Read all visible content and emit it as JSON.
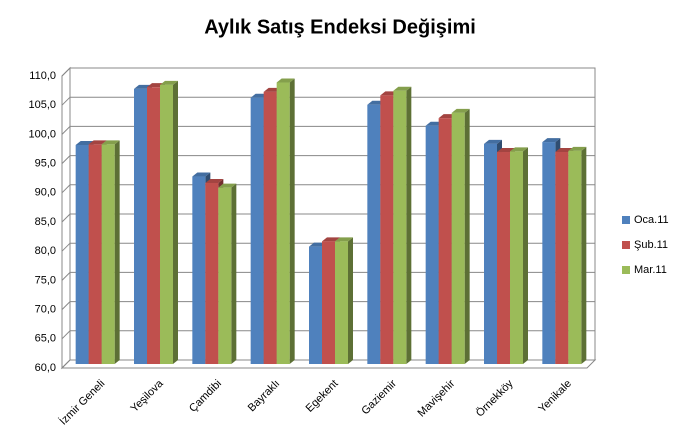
{
  "chart_data": {
    "type": "bar",
    "title": "Aylık Satış Endeksi Değişimi",
    "categories": [
      "İzmir Geneli",
      "Yeşilova",
      "Çamdibi",
      "Bayraklı",
      "Egekent",
      "Gaziemir",
      "Mavişehir",
      "Örnekköy",
      "Yenikale"
    ],
    "series": [
      {
        "name": "Oca.11",
        "color": "#4f81bd",
        "values": [
          97.5,
          107.1,
          92.1,
          105.6,
          80.1,
          104.4,
          100.8,
          97.7,
          98.0
        ]
      },
      {
        "name": "Şub.11",
        "color": "#c0504d",
        "values": [
          97.6,
          107.4,
          91.0,
          106.6,
          81.0,
          106.0,
          102.1,
          96.3,
          96.3
        ]
      },
      {
        "name": "Mar.11",
        "color": "#9bbb59",
        "values": [
          97.6,
          107.8,
          90.2,
          108.2,
          81.0,
          106.8,
          103.0,
          96.4,
          96.5
        ]
      }
    ],
    "ylim": [
      60,
      110
    ],
    "yticks": [
      {
        "value": 60,
        "label": "60,0"
      },
      {
        "value": 65,
        "label": "65,0"
      },
      {
        "value": 70,
        "label": "70,0"
      },
      {
        "value": 75,
        "label": "75,0"
      },
      {
        "value": 80,
        "label": "80,0"
      },
      {
        "value": 85,
        "label": "85,0"
      },
      {
        "value": 90,
        "label": "90,0"
      },
      {
        "value": 95,
        "label": "95,0"
      },
      {
        "value": 100,
        "label": "100,0"
      },
      {
        "value": 105,
        "label": "105,0"
      },
      {
        "value": 110,
        "label": "110,0"
      }
    ],
    "grid": true,
    "legend": "right"
  }
}
